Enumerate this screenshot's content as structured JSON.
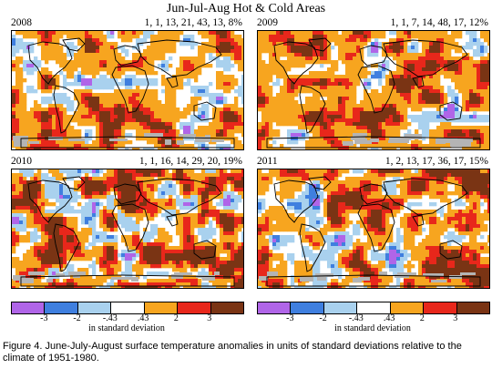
{
  "title": "Jun-Jul-Aug Hot & Cold Areas",
  "panels": [
    {
      "year": "2008",
      "stats": "1, 1, 13, 21, 43, 13, 8%",
      "fractions": [
        1,
        1,
        13,
        21,
        43,
        13,
        8
      ]
    },
    {
      "year": "2009",
      "stats": "1, 1, 7, 14, 48, 17, 12%",
      "fractions": [
        1,
        1,
        7,
        14,
        48,
        17,
        12
      ]
    },
    {
      "year": "2010",
      "stats": "1, 1, 16, 14, 29, 20, 19%",
      "fractions": [
        1,
        1,
        16,
        14,
        29,
        20,
        19
      ]
    },
    {
      "year": "2011",
      "stats": "1, 2, 13, 17, 36, 17, 15%",
      "fractions": [
        1,
        2,
        13,
        17,
        36,
        17,
        15
      ]
    }
  ],
  "legend": {
    "colors": [
      "#b065e8",
      "#3f7fdf",
      "#a9d1ee",
      "#ffffff",
      "#f7a51f",
      "#e8271b",
      "#7a3414"
    ],
    "ticks": [
      "-3",
      "-2",
      "-.43",
      ".43",
      "2",
      "3"
    ],
    "units": "in standard deviation"
  },
  "caption": "Figure 4.  June-July-August surface temperature anomalies in units of standard deviations relative to the climate of 1951-1980."
}
